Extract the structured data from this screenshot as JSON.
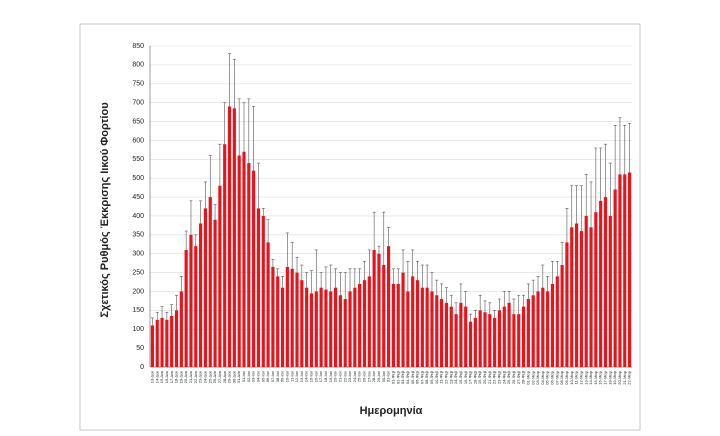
{
  "chart_data": {
    "type": "bar",
    "y_label": "Σχετικός Ρυθμός Έκκρισης Ιικού Φορτίου",
    "x_label": "Ημερομηνία",
    "color": "#e8141c",
    "error_color": "#555555",
    "grid": true,
    "ylim": [
      0,
      850
    ],
    "yticks": [
      0,
      50,
      100,
      150,
      200,
      250,
      300,
      350,
      400,
      450,
      500,
      550,
      600,
      650,
      700,
      750,
      800,
      850
    ],
    "categories": [
      "13-Δεκ",
      "14-Δεκ",
      "15-Δεκ",
      "16-Δεκ",
      "17-Δεκ",
      "18-Δεκ",
      "19-Δεκ",
      "20-Δεκ",
      "21-Δεκ",
      "22-Δεκ",
      "23-Δεκ",
      "24-Δεκ",
      "25-Δεκ",
      "26-Δεκ",
      "27-Δεκ",
      "28-Δεκ",
      "29-Δεκ",
      "30-Δεκ",
      "31-Δεκ",
      "01-Ιαν",
      "02-Ιαν",
      "03-Ιαν",
      "04-Ιαν",
      "05-Ιαν",
      "06-Ιαν",
      "07-Ιαν",
      "08-Ιαν",
      "09-Ιαν",
      "10-Ιαν",
      "11-Ιαν",
      "12-Ιαν",
      "13-Ιαν",
      "14-Ιαν",
      "15-Ιαν",
      "16-Ιαν",
      "17-Ιαν",
      "18-Ιαν",
      "19-Ιαν",
      "20-Ιαν",
      "21-Ιαν",
      "22-Ιαν",
      "23-Ιαν",
      "24-Ιαν",
      "25-Ιαν",
      "26-Ιαν",
      "27-Ιαν",
      "28-Ιαν",
      "29-Ιαν",
      "30-Ιαν",
      "31-Ιαν",
      "01-Φεβ",
      "02-Φεβ",
      "03-Φεβ",
      "04-Φεβ",
      "05-Φεβ",
      "06-Φεβ",
      "07-Φεβ",
      "08-Φεβ",
      "09-Φεβ",
      "10-Φεβ",
      "11-Φεβ",
      "12-Φεβ",
      "13-Φεβ",
      "14-Φεβ",
      "15-Φεβ",
      "16-Φεβ",
      "17-Φεβ",
      "18-Φεβ",
      "19-Φεβ",
      "20-Φεβ",
      "21-Φεβ",
      "22-Φεβ",
      "23-Φεβ",
      "24-Φεβ",
      "25-Φεβ",
      "26-Φεβ",
      "27-Φεβ",
      "28-Φεβ",
      "01-Μαρ",
      "02-Μαρ",
      "03-Μαρ",
      "04-Μαρ",
      "05-Μαρ",
      "06-Μαρ",
      "07-Μαρ",
      "08-Μαρ",
      "09-Μαρ",
      "10-Μαρ",
      "11-Μαρ",
      "12-Μαρ",
      "13-Μαρ",
      "14-Μαρ",
      "15-Μαρ",
      "16-Μαρ",
      "17-Μαρ",
      "18-Μαρ",
      "19-Μαρ",
      "20-Μαρ",
      "21-Μαρ",
      "22-Μαρ"
    ],
    "values": [
      110,
      125,
      130,
      125,
      135,
      150,
      200,
      310,
      350,
      320,
      380,
      420,
      450,
      390,
      480,
      590,
      690,
      685,
      560,
      570,
      540,
      520,
      420,
      400,
      330,
      265,
      240,
      210,
      265,
      260,
      250,
      230,
      210,
      195,
      200,
      210,
      205,
      200,
      210,
      190,
      180,
      200,
      210,
      220,
      230,
      240,
      310,
      300,
      270,
      320,
      220,
      220,
      250,
      200,
      240,
      230,
      210,
      210,
      200,
      190,
      180,
      170,
      160,
      140,
      170,
      160,
      120,
      130,
      150,
      145,
      140,
      130,
      150,
      160,
      170,
      140,
      140,
      160,
      180,
      190,
      200,
      210,
      200,
      220,
      240,
      270,
      330,
      370,
      380,
      360,
      400,
      370,
      410,
      440,
      450,
      400,
      470,
      510,
      510,
      515
    ],
    "errors": [
      20,
      20,
      30,
      20,
      30,
      40,
      40,
      50,
      90,
      30,
      60,
      70,
      110,
      40,
      110,
      110,
      140,
      130,
      150,
      130,
      170,
      170,
      120,
      20,
      60,
      20,
      20,
      30,
      90,
      70,
      40,
      40,
      40,
      60,
      110,
      40,
      60,
      70,
      50,
      60,
      70,
      60,
      50,
      40,
      50,
      70,
      100,
      20,
      140,
      50,
      40,
      40,
      60,
      80,
      70,
      50,
      60,
      60,
      50,
      40,
      40,
      40,
      30,
      30,
      50,
      40,
      20,
      20,
      40,
      30,
      30,
      20,
      30,
      40,
      30,
      40,
      50,
      30,
      40,
      40,
      40,
      60,
      40,
      60,
      40,
      60,
      90,
      110,
      100,
      120,
      110,
      120,
      170,
      140,
      140,
      140,
      170,
      150,
      130,
      130
    ]
  }
}
